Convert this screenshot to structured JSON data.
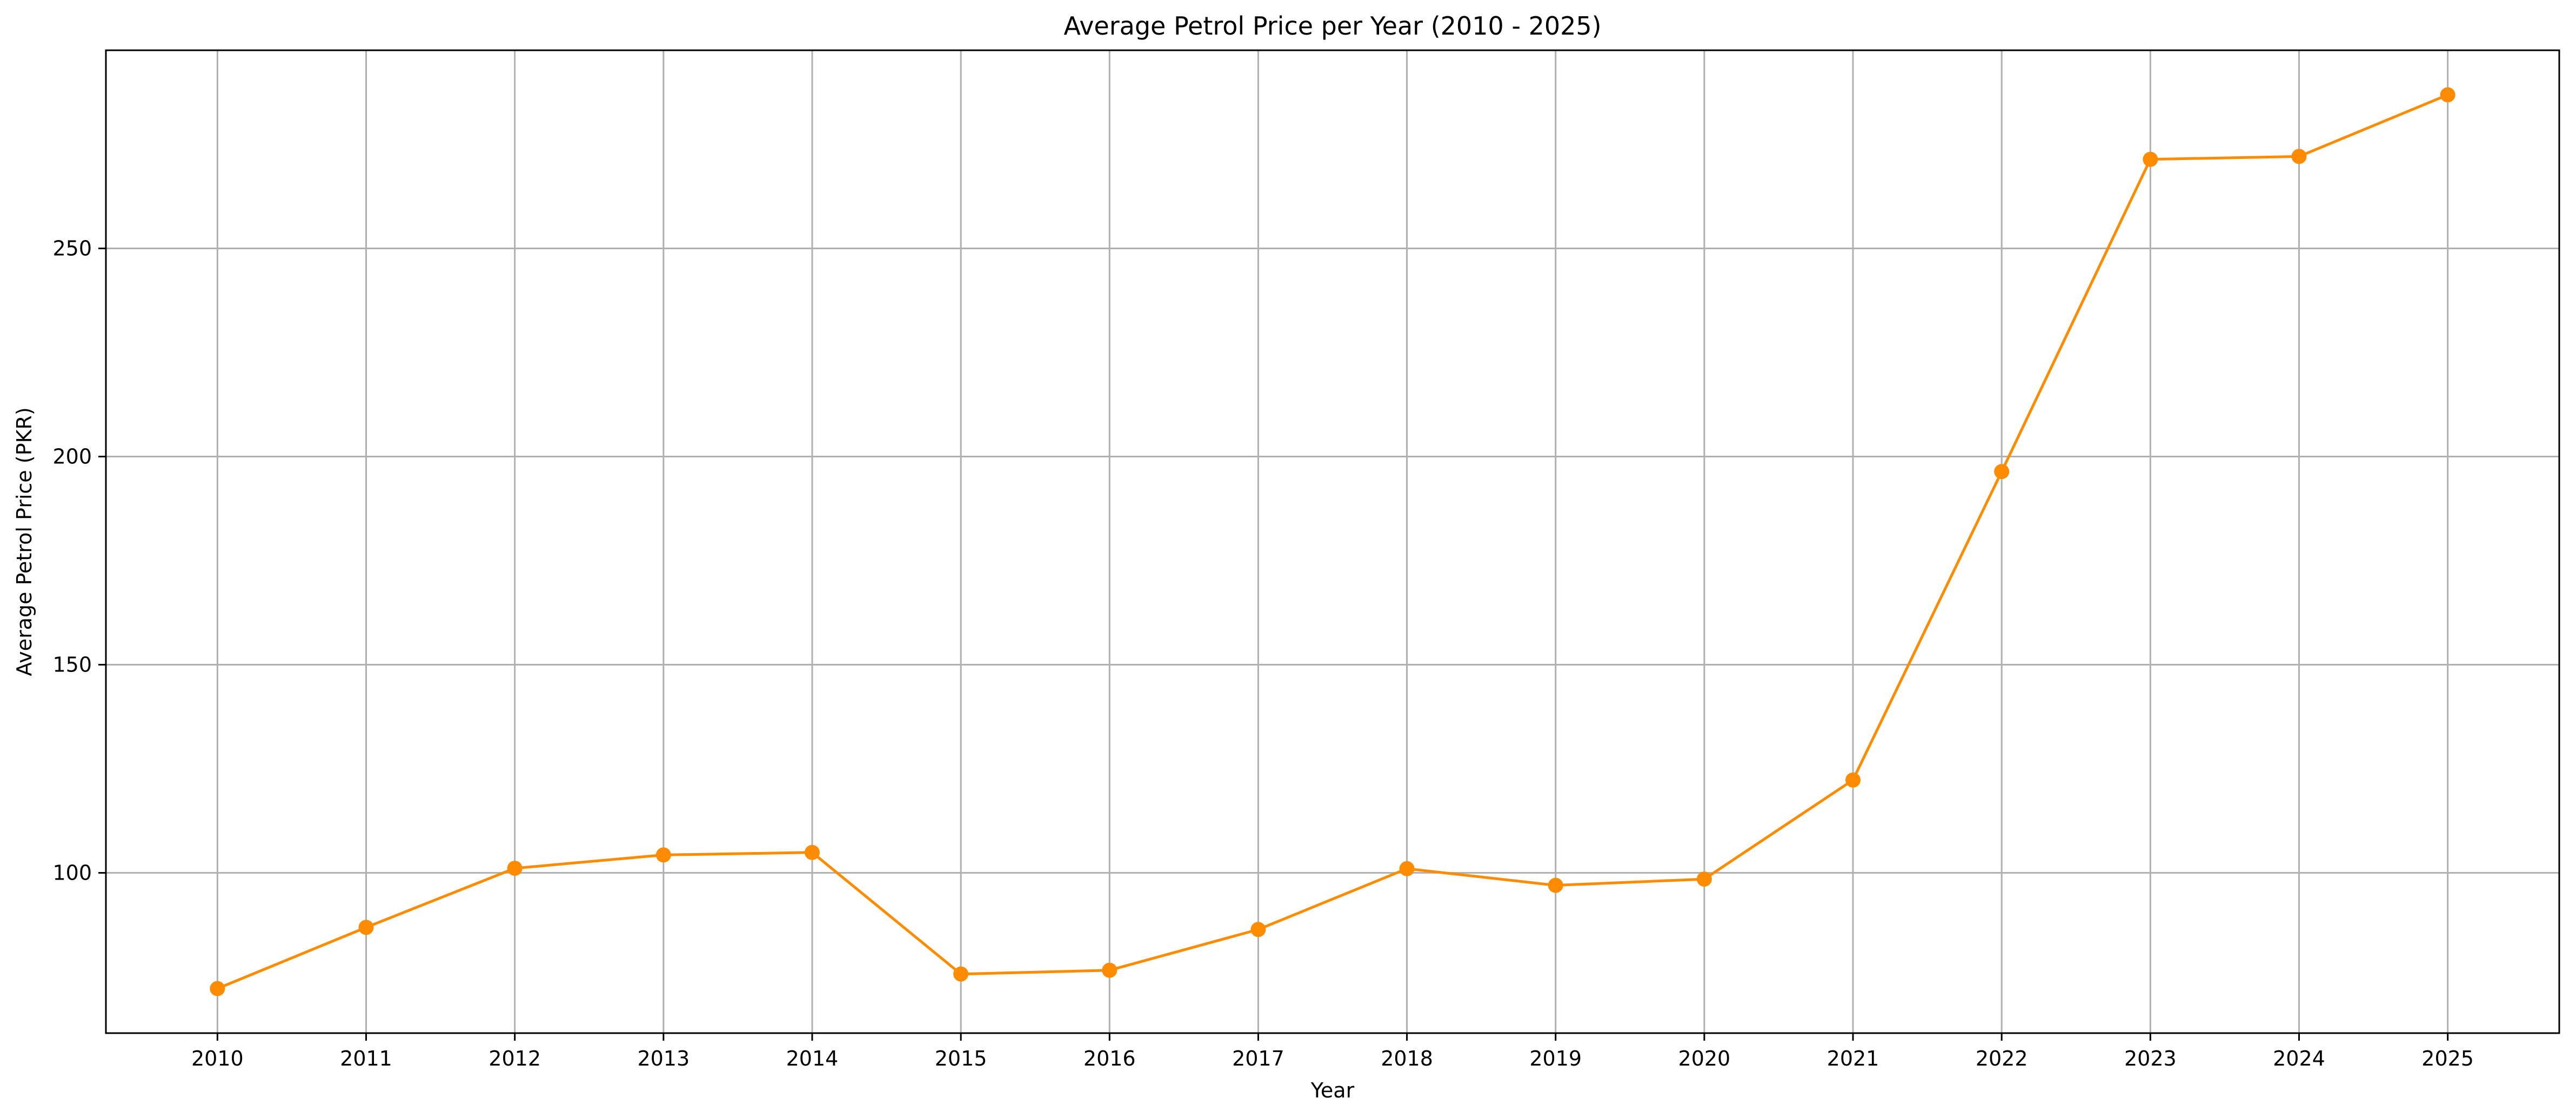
{
  "chart_data": {
    "type": "line",
    "title": "Average Petrol Price per Year (2010 - 2025)",
    "xlabel": "Year",
    "ylabel": "Average Petrol Price (PKR)",
    "x": [
      2010,
      2011,
      2012,
      2013,
      2014,
      2015,
      2016,
      2017,
      2018,
      2019,
      2020,
      2021,
      2022,
      2023,
      2024,
      2025
    ],
    "series": [
      {
        "values": [
          72.2,
          86.9,
          101.1,
          104.3,
          104.9,
          75.7,
          76.6,
          86.4,
          101.0,
          97.0,
          98.5,
          122.3,
          196.4,
          271.4,
          272.1,
          286.9
        ],
        "color": "#ff8c00",
        "marker": "circle"
      }
    ],
    "xticks": [
      "2010",
      "2011",
      "2012",
      "2013",
      "2014",
      "2015",
      "2016",
      "2017",
      "2018",
      "2019",
      "2020",
      "2021",
      "2022",
      "2023",
      "2024",
      "2025"
    ],
    "yticks": [
      100,
      150,
      200,
      250
    ],
    "xlim": [
      2009.25,
      2025.75
    ],
    "ylim": [
      61.5,
      297.6
    ],
    "grid": true,
    "legend": "none"
  }
}
